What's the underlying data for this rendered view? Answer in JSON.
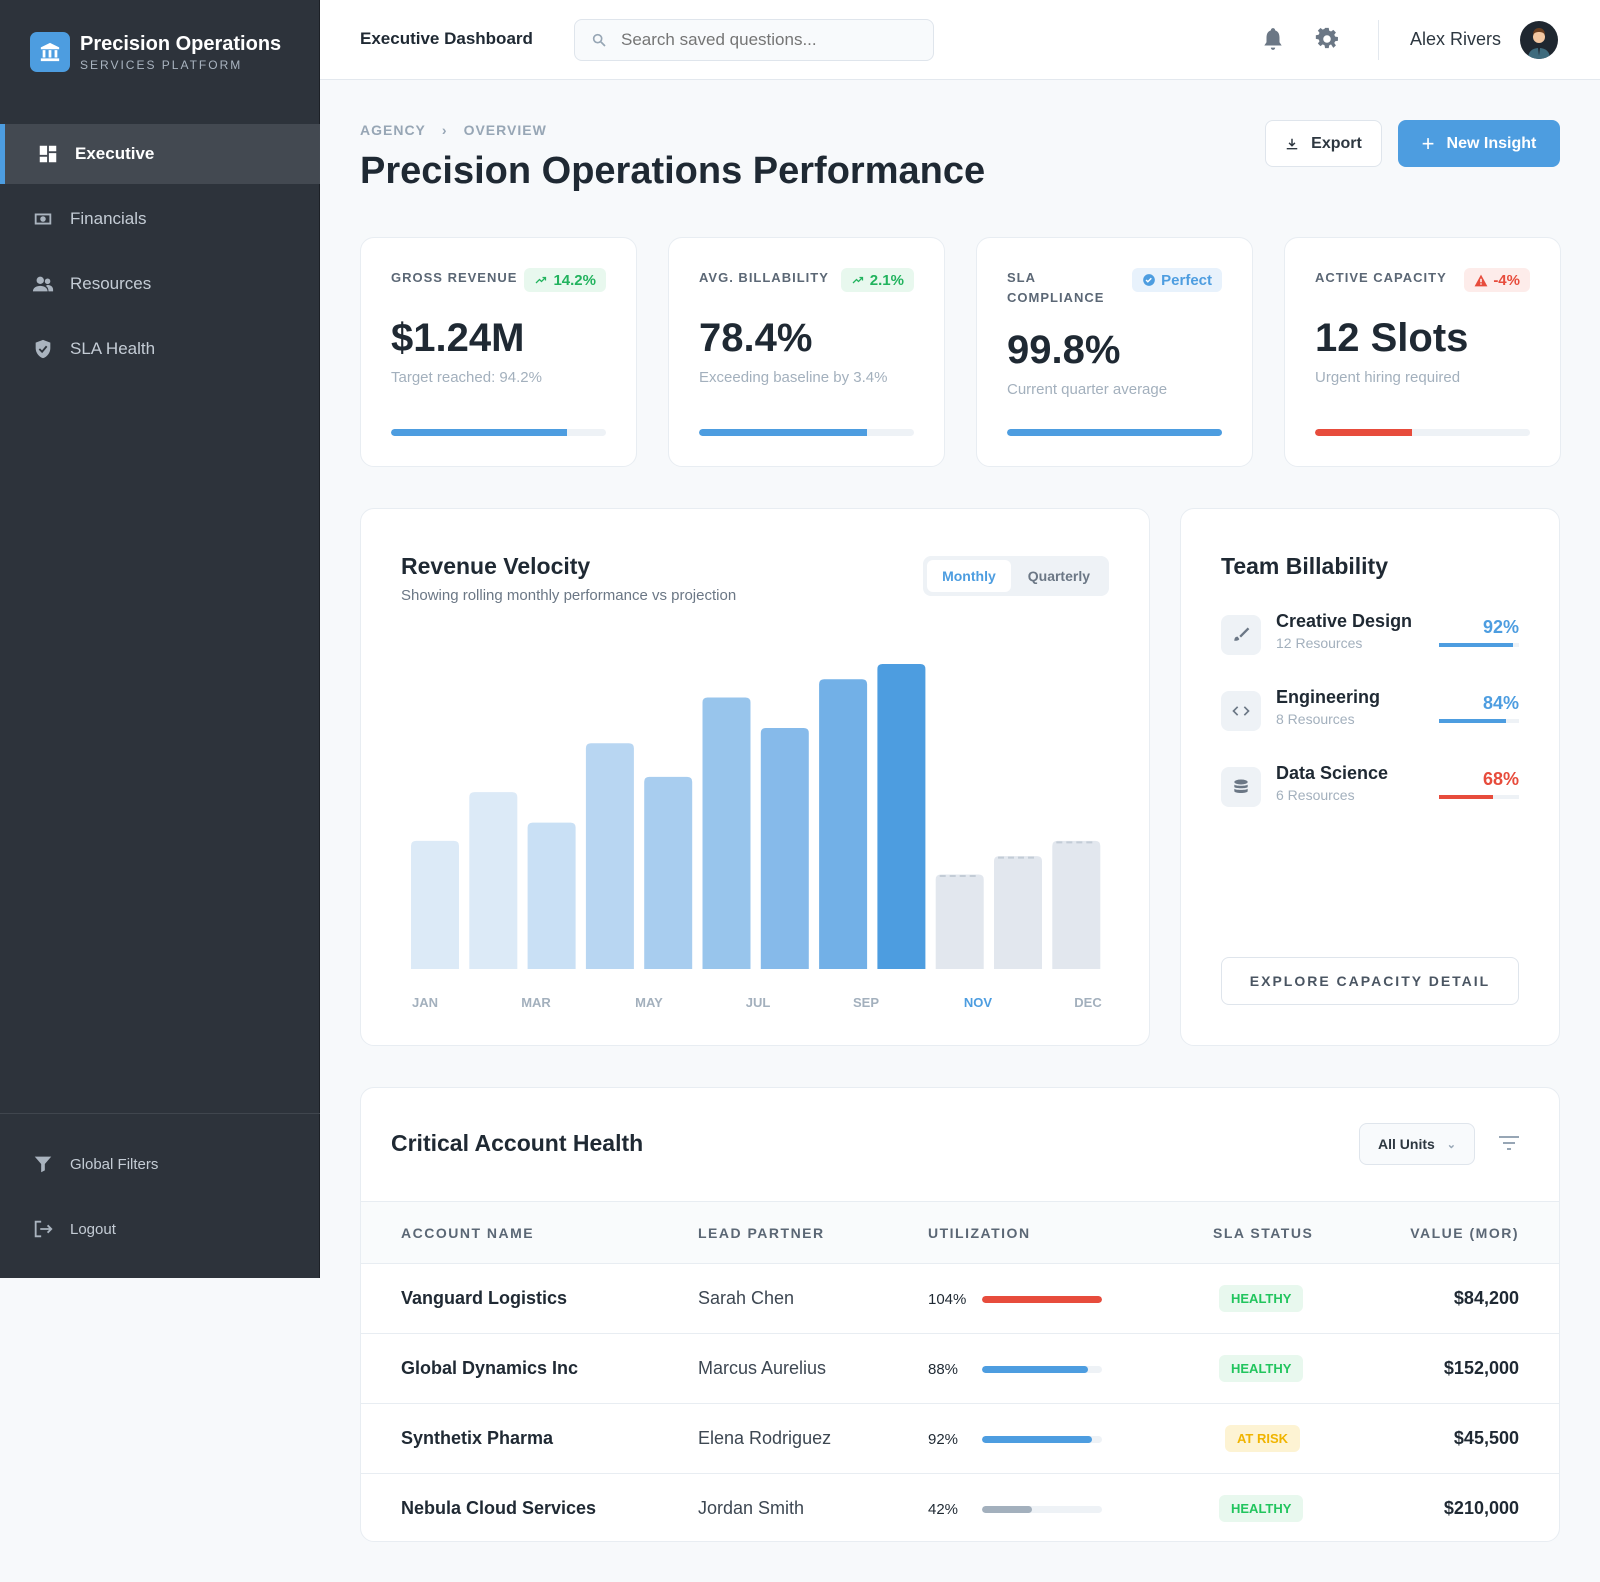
{
  "brand": {
    "title": "Precision Operations",
    "subtitle": "SERVICES PLATFORM"
  },
  "sidebar": {
    "items": [
      {
        "label": "Executive",
        "icon": "dashboard-icon",
        "active": true
      },
      {
        "label": "Financials",
        "icon": "money-icon"
      },
      {
        "label": "Resources",
        "icon": "users-icon"
      },
      {
        "label": "SLA Health",
        "icon": "shield-icon"
      }
    ],
    "bottom": [
      {
        "label": "Global Filters",
        "icon": "filter-icon"
      },
      {
        "label": "Logout",
        "icon": "logout-icon"
      }
    ]
  },
  "header": {
    "title": "Executive Dashboard",
    "search_placeholder": "Search saved questions...",
    "user": "Alex Rivers"
  },
  "breadcrumb": [
    "AGENCY",
    "OVERVIEW"
  ],
  "page_title": "Precision Operations Performance",
  "actions": {
    "export": "Export",
    "new": "New Insight"
  },
  "kpis": [
    {
      "label": "GROSS REVENUE",
      "badge": "14.2%",
      "badge_type": "up",
      "value": "$1.24M",
      "sub": "Target reached: 94.2%",
      "progress": 82,
      "color": "#4d9de0"
    },
    {
      "label": "AVG. BILLABILITY",
      "badge": "2.1%",
      "badge_type": "up",
      "value": "78.4%",
      "sub": "Exceeding baseline by 3.4%",
      "progress": 78,
      "color": "#4d9de0"
    },
    {
      "label": "SLA COMPLIANCE",
      "badge": "Perfect",
      "badge_type": "info",
      "value": "99.8%",
      "sub": "Current quarter average",
      "progress": 99.8,
      "color": "#4d9de0"
    },
    {
      "label": "ACTIVE CAPACITY",
      "badge": "-4%",
      "badge_type": "warn",
      "value": "12 Slots",
      "sub": "Urgent hiring required",
      "progress": 45,
      "color": "#e74c3c"
    }
  ],
  "revenue": {
    "title": "Revenue Velocity",
    "subtitle": "Showing rolling monthly performance vs projection",
    "toggle": [
      "Monthly",
      "Quarterly"
    ],
    "active_toggle": "Monthly"
  },
  "chart_data": {
    "type": "bar",
    "values_relative_to_max": [
      42,
      58,
      48,
      74,
      63,
      89,
      79,
      95,
      100,
      31,
      37,
      42
    ],
    "projected": [
      false,
      false,
      false,
      false,
      false,
      false,
      false,
      false,
      false,
      true,
      true,
      true
    ],
    "tick_labels": [
      "JAN",
      "MAR",
      "MAY",
      "JUL",
      "SEP",
      "NOV",
      "DEC"
    ],
    "highlight_tick": "NOV",
    "colors": [
      "#dceaf7",
      "#dceaf7",
      "#c9e0f5",
      "#b8d6f2",
      "#a8cdef",
      "#98c5ec",
      "#86baea",
      "#72b0e7",
      "#4d9de0",
      "#e2e7ee",
      "#e2e7ee",
      "#e2e7ee"
    ]
  },
  "team": {
    "title": "Team Billability",
    "rows": [
      {
        "name": "Creative Design",
        "res": "12 Resources",
        "pct": "92%",
        "value": 92,
        "color": "#4d9de0",
        "icon": "brush-icon"
      },
      {
        "name": "Engineering",
        "res": "8 Resources",
        "pct": "84%",
        "value": 84,
        "color": "#4d9de0",
        "icon": "code-icon"
      },
      {
        "name": "Data Science",
        "res": "6 Resources",
        "pct": "68%",
        "value": 68,
        "color": "#e74c3c",
        "icon": "database-icon"
      }
    ],
    "cta": "EXPLORE CAPACITY DETAIL"
  },
  "accounts": {
    "title": "Critical Account Health",
    "filter": "All Units",
    "columns": [
      "ACCOUNT NAME",
      "LEAD PARTNER",
      "UTILIZATION",
      "SLA STATUS",
      "VALUE (MOR)"
    ],
    "rows": [
      {
        "name": "Vanguard Logistics",
        "lead": "Sarah Chen",
        "util": "104%",
        "value": 100,
        "bar": "#e74c3c",
        "status": "HEALTHY",
        "amount": "$84,200"
      },
      {
        "name": "Global Dynamics Inc",
        "lead": "Marcus Aurelius",
        "util": "88%",
        "value": 88,
        "bar": "#4d9de0",
        "status": "HEALTHY",
        "amount": "$152,000"
      },
      {
        "name": "Synthetix Pharma",
        "lead": "Elena Rodriguez",
        "util": "92%",
        "value": 92,
        "bar": "#4d9de0",
        "status": "AT RISK",
        "amount": "$45,500"
      },
      {
        "name": "Nebula Cloud Services",
        "lead": "Jordan Smith",
        "util": "42%",
        "value": 42,
        "bar": "#a3b0bd",
        "status": "HEALTHY",
        "amount": "$210,000"
      }
    ]
  }
}
